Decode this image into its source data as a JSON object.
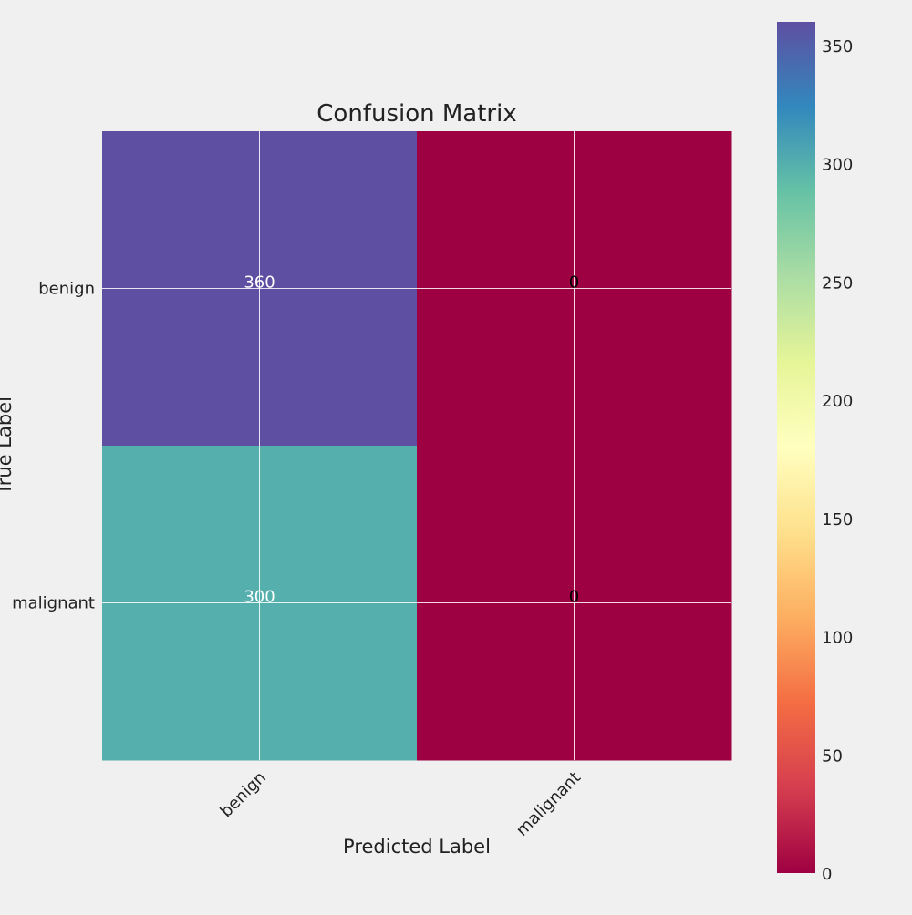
{
  "chart_data": {
    "type": "heatmap",
    "title": "Confusion Matrix",
    "xlabel": "Predicted Label",
    "ylabel": "True Label",
    "x_categories": [
      "benign",
      "malignant"
    ],
    "y_categories": [
      "benign",
      "malignant"
    ],
    "values": [
      [
        360,
        0
      ],
      [
        300,
        0
      ]
    ],
    "colormap": "Spectral",
    "colorbar": {
      "min": 0,
      "max": 360,
      "ticks": [
        0,
        50,
        100,
        150,
        200,
        250,
        300,
        350
      ],
      "tick_labels": [
        "0",
        "50",
        "100",
        "150",
        "200",
        "250",
        "300",
        "350"
      ]
    },
    "grid": true,
    "tick_label_rotation_x": 45,
    "colors": {
      "background": "#f0f0f0",
      "grid": "#ffffff",
      "text": "#222222"
    }
  }
}
